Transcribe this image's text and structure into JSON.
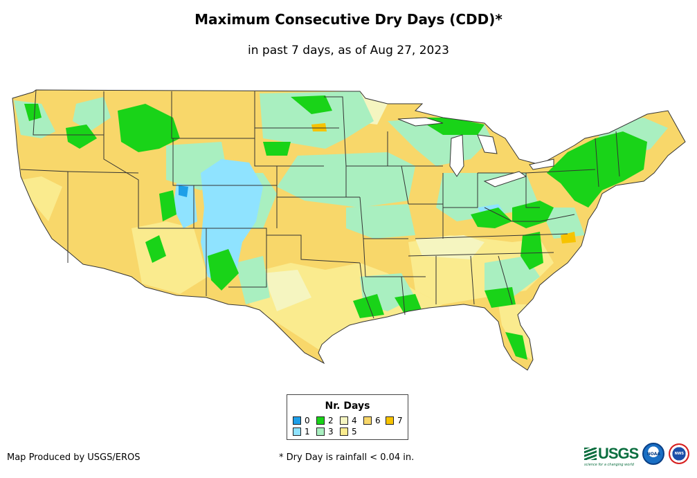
{
  "title": "Maximum Consecutive Dry Days (CDD)*",
  "subtitle": "in past 7 days, as of Aug 27, 2023",
  "legend": {
    "title": "Nr. Days",
    "items": [
      {
        "label": "0",
        "color": "#1e9fe8"
      },
      {
        "label": "1",
        "color": "#8fe3ff"
      },
      {
        "label": "2",
        "color": "#19d318"
      },
      {
        "label": "3",
        "color": "#a9efc0"
      },
      {
        "label": "4",
        "color": "#f5f5c0"
      },
      {
        "label": "5",
        "color": "#faeb8e"
      },
      {
        "label": "6",
        "color": "#f8d76a"
      },
      {
        "label": "7",
        "color": "#f7c300"
      }
    ]
  },
  "credit": "Map Produced by USGS/EROS",
  "footnote": "* Dry Day is rainfall < 0.04 in.",
  "logos": {
    "usgs": "USGS",
    "usgs_tagline": "science for a changing world",
    "noaa": "NOAA",
    "nws": "NWS"
  },
  "colors": {
    "state_border": "#333333",
    "water": "#ffffff"
  }
}
